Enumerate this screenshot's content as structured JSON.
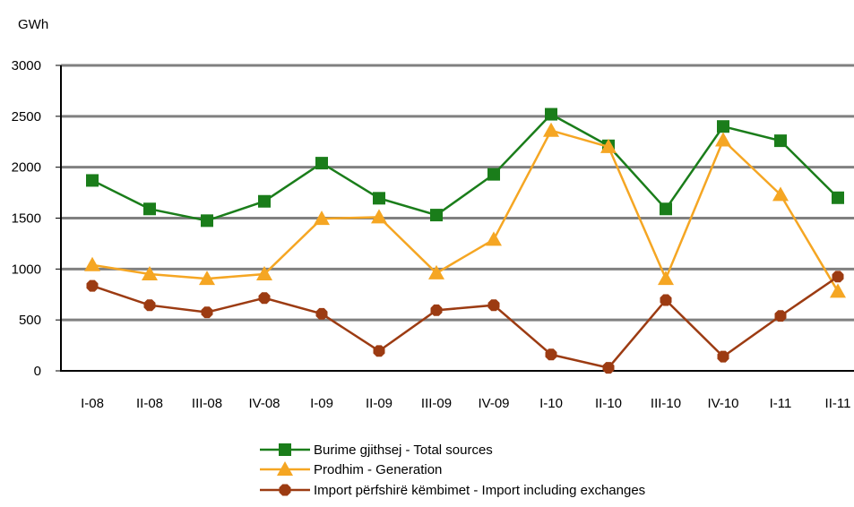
{
  "chart_data": {
    "type": "line",
    "ylabel": "GWh",
    "ylim": [
      0,
      3000
    ],
    "yticks": [
      0,
      500,
      1000,
      1500,
      2000,
      2500,
      3000
    ],
    "grid": true,
    "legend_position": "bottom",
    "categories": [
      "I-08",
      "II-08",
      "III-08",
      "IV-08",
      "I-09",
      "II-09",
      "III-09",
      "IV-09",
      "I-10",
      "II-10",
      "III-10",
      "IV-10",
      "I-11",
      "II-11"
    ],
    "series": [
      {
        "name": "Burime gjithsej - Total sources",
        "color": "#1a7d1a",
        "marker": "square",
        "values": [
          1870,
          1590,
          1475,
          1665,
          2040,
          1695,
          1530,
          1930,
          2520,
          2210,
          1590,
          2400,
          2260,
          1700
        ]
      },
      {
        "name": "Prodhim - Generation",
        "color": "#f5a623",
        "marker": "triangle",
        "values": [
          1040,
          950,
          905,
          950,
          1495,
          1510,
          960,
          1290,
          2360,
          2200,
          905,
          2265,
          1730,
          780
        ]
      },
      {
        "name": "Import përfshirë këmbimet  - Import including exchanges",
        "color": "#9c3b12",
        "marker": "circle",
        "values": [
          835,
          645,
          575,
          715,
          560,
          195,
          595,
          645,
          160,
          30,
          695,
          140,
          540,
          925
        ]
      }
    ]
  }
}
